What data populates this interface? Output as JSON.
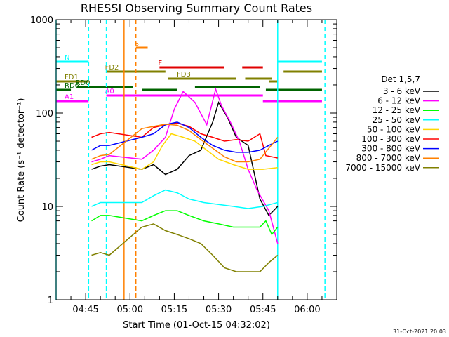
{
  "chart_data": {
    "type": "line",
    "title": "RHESSI Observing Summary Count Rates",
    "xlabel": "Start Time (01-Oct-15 04:32:02)",
    "ylabel": "Count Rate (s⁻¹ detector⁻¹)",
    "yscale": "log",
    "ylim": [
      1,
      1000
    ],
    "xlim": [
      "04:35",
      "06:10"
    ],
    "x_ticks": [
      "04:45",
      "05:00",
      "05:15",
      "05:30",
      "05:45",
      "06:00"
    ],
    "y_ticks": [
      "1",
      "10",
      "100",
      "1000"
    ],
    "timestamp": "31-Oct-2021 20:03",
    "legend_title": "Det 1,5,7",
    "legend_position": "right",
    "grid": false,
    "series": [
      {
        "name": "3 - 6 keV",
        "color": "#000000",
        "x": [
          "04:47",
          "04:50",
          "04:53",
          "05:04",
          "05:08",
          "05:12",
          "05:16",
          "05:20",
          "05:24",
          "05:28",
          "05:30",
          "05:33",
          "05:36",
          "05:40",
          "05:44",
          "05:47",
          "05:50"
        ],
        "y": [
          25,
          27,
          28,
          25,
          28,
          22,
          25,
          35,
          40,
          80,
          130,
          90,
          55,
          45,
          12,
          8,
          10
        ]
      },
      {
        "name": "6 - 12 keV",
        "color": "#ff00ff",
        "x": [
          "04:47",
          "04:50",
          "04:53",
          "05:04",
          "05:08",
          "05:12",
          "05:15",
          "05:18",
          "05:22",
          "05:26",
          "05:29",
          "05:31",
          "05:34",
          "05:37",
          "05:40",
          "05:43",
          "05:47",
          "05:50"
        ],
        "y": [
          30,
          32,
          35,
          32,
          40,
          55,
          110,
          170,
          130,
          75,
          180,
          120,
          80,
          50,
          25,
          15,
          9,
          4
        ]
      },
      {
        "name": "12 - 25 keV",
        "color": "#00ff00",
        "x": [
          "04:47",
          "04:50",
          "04:53",
          "05:04",
          "05:08",
          "05:12",
          "05:16",
          "05:20",
          "05:25",
          "05:30",
          "05:35",
          "05:40",
          "05:44",
          "05:46",
          "05:48",
          "05:50"
        ],
        "y": [
          7,
          8,
          8,
          7,
          8,
          9,
          9,
          8,
          7,
          6.5,
          6,
          6,
          6,
          7,
          5,
          6
        ]
      },
      {
        "name": "25 - 50 keV",
        "color": "#00ffff",
        "x": [
          "04:47",
          "04:50",
          "04:53",
          "05:04",
          "05:08",
          "05:12",
          "05:16",
          "05:20",
          "05:25",
          "05:30",
          "05:35",
          "05:40",
          "05:45",
          "05:50"
        ],
        "y": [
          10,
          11,
          11,
          11,
          13,
          15,
          14,
          12,
          11,
          10.5,
          10,
          9.5,
          10,
          11
        ]
      },
      {
        "name": "50 - 100 keV",
        "color": "#ffd700",
        "x": [
          "04:47",
          "04:50",
          "04:53",
          "05:04",
          "05:08",
          "05:11",
          "05:14",
          "05:18",
          "05:22",
          "05:26",
          "05:30",
          "05:35",
          "05:40",
          "05:45",
          "05:50"
        ],
        "y": [
          28,
          30,
          30,
          25,
          30,
          45,
          60,
          55,
          50,
          40,
          32,
          28,
          25,
          25,
          26
        ]
      },
      {
        "name": "100 - 300 keV",
        "color": "#ff0000",
        "x": [
          "04:47",
          "04:50",
          "04:53",
          "05:04",
          "05:08",
          "05:12",
          "05:16",
          "05:20",
          "05:24",
          "05:28",
          "05:32",
          "05:36",
          "05:40",
          "05:44",
          "05:46",
          "05:50"
        ],
        "y": [
          55,
          60,
          62,
          55,
          70,
          75,
          78,
          72,
          60,
          55,
          50,
          52,
          50,
          60,
          35,
          33
        ]
      },
      {
        "name": "300 - 800 keV",
        "color": "#0000ff",
        "x": [
          "04:47",
          "04:50",
          "04:53",
          "05:04",
          "05:08",
          "05:12",
          "05:16",
          "05:20",
          "05:24",
          "05:28",
          "05:32",
          "05:36",
          "05:40",
          "05:44",
          "05:47",
          "05:50"
        ],
        "y": [
          40,
          45,
          45,
          55,
          60,
          75,
          80,
          70,
          55,
          45,
          40,
          38,
          38,
          40,
          45,
          50
        ]
      },
      {
        "name": "800 - 7000 keV",
        "color": "#ff8000",
        "x": [
          "04:47",
          "04:50",
          "04:53",
          "05:04",
          "05:08",
          "05:12",
          "05:16",
          "05:20",
          "05:24",
          "05:28",
          "05:32",
          "05:36",
          "05:40",
          "05:44",
          "05:47",
          "05:50"
        ],
        "y": [
          32,
          35,
          36,
          68,
          72,
          76,
          74,
          65,
          52,
          42,
          34,
          30,
          30,
          32,
          42,
          55
        ]
      },
      {
        "name": "7000 - 15000 keV",
        "color": "#808000",
        "x": [
          "04:47",
          "04:50",
          "04:53",
          "05:04",
          "05:08",
          "05:12",
          "05:16",
          "05:20",
          "05:24",
          "05:28",
          "05:32",
          "05:36",
          "05:40",
          "05:44",
          "05:47",
          "05:50"
        ],
        "y": [
          3,
          3.2,
          3,
          6,
          6.5,
          5.5,
          5,
          4.5,
          4,
          3,
          2.2,
          2,
          2,
          2,
          2.5,
          3
        ]
      }
    ],
    "flag_bars": [
      {
        "label": "S",
        "color": "#ff8000",
        "segments": [
          [
            "05:02",
            "05:06"
          ]
        ]
      },
      {
        "label": "N",
        "color": "#00ffff",
        "segments": [
          [
            "04:35",
            "04:46"
          ],
          [
            "05:50",
            "06:05"
          ]
        ]
      },
      {
        "label": "F",
        "color": "#e00000",
        "segments": [
          [
            "05:10",
            "05:32"
          ],
          [
            "05:38",
            "05:45"
          ]
        ]
      },
      {
        "label": "FD1",
        "color": "#808000",
        "segments": [
          [
            "04:35",
            "04:46"
          ],
          [
            "05:47",
            "05:50"
          ]
        ]
      },
      {
        "label": "FD2",
        "color": "#808000",
        "segments": [
          [
            "04:52",
            "05:12"
          ],
          [
            "05:52",
            "06:05"
          ]
        ]
      },
      {
        "label": "FD3",
        "color": "#808000",
        "segments": [
          [
            "05:13",
            "05:36"
          ],
          [
            "05:39",
            "05:48"
          ]
        ]
      },
      {
        "label": "RD0",
        "color": "#006400",
        "segments": [
          [
            "04:42",
            "05:01"
          ],
          [
            "05:22",
            "05:44"
          ]
        ]
      },
      {
        "label": "RD6",
        "color": "#006400",
        "segments": [
          [
            "04:35",
            "04:40"
          ],
          [
            "05:04",
            "05:16"
          ],
          [
            "05:46",
            "06:05"
          ]
        ]
      },
      {
        "label": "A0",
        "color": "#ff00ff",
        "segments": [
          [
            "04:52",
            "05:45"
          ]
        ]
      },
      {
        "label": "A1",
        "color": "#ff00ff",
        "segments": [
          [
            "04:35",
            "04:46"
          ],
          [
            "05:45",
            "05:50"
          ],
          [
            "05:50",
            "06:05"
          ]
        ]
      }
    ],
    "vlines": [
      {
        "time": "04:35",
        "color": "#00ffff",
        "style": "solid"
      },
      {
        "time": "04:46",
        "color": "#00ffff",
        "style": "dashed"
      },
      {
        "time": "04:52",
        "color": "#00ffff",
        "style": "dashed"
      },
      {
        "time": "04:58",
        "color": "#ff8000",
        "style": "solid"
      },
      {
        "time": "05:02",
        "color": "#ff8000",
        "style": "dashed"
      },
      {
        "time": "05:50",
        "color": "#00ffff",
        "style": "solid"
      },
      {
        "time": "06:06",
        "color": "#00ffff",
        "style": "dashed"
      }
    ]
  }
}
